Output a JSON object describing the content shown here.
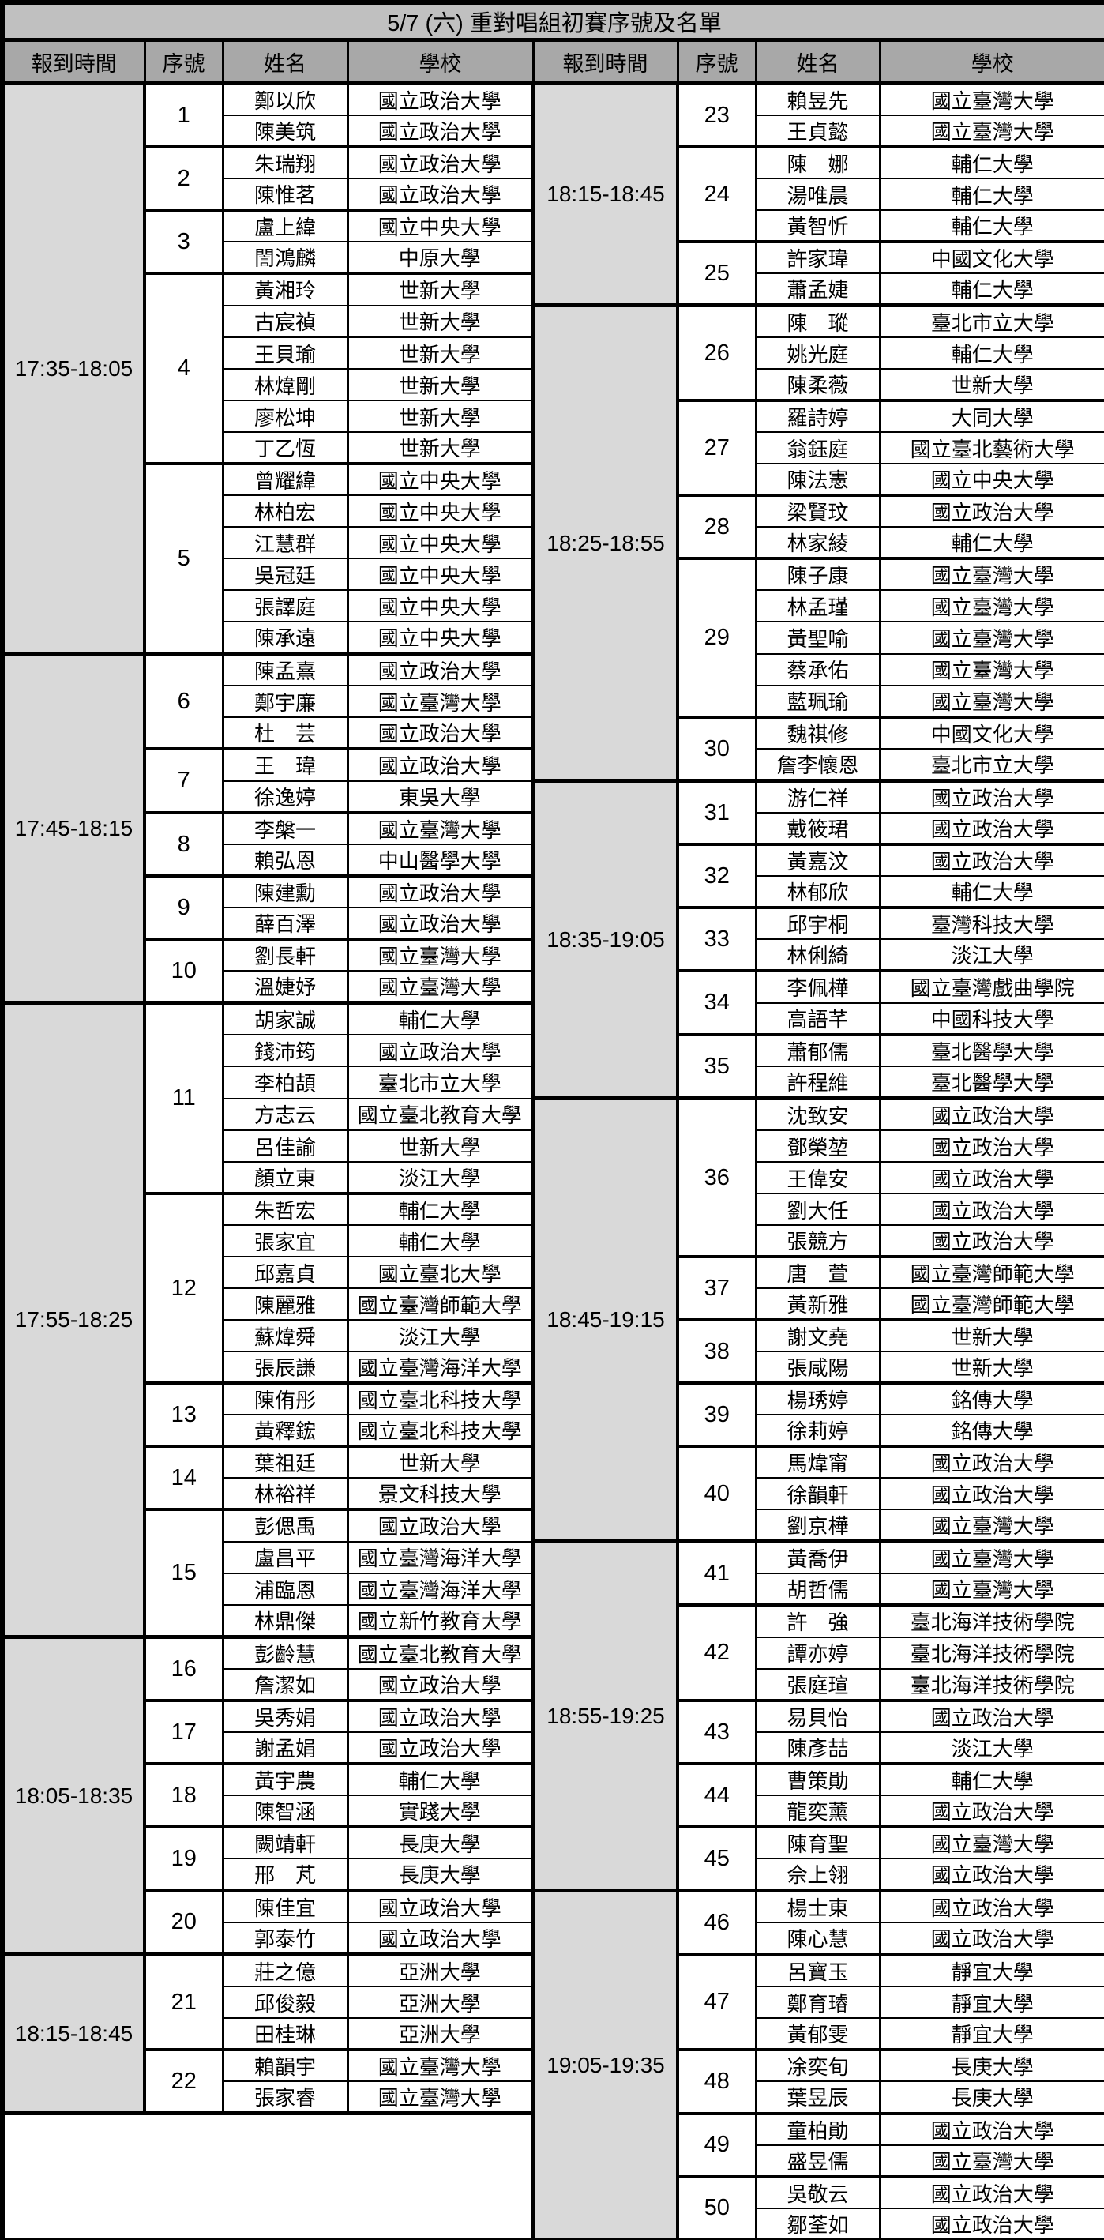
{
  "title": "5/7 (六) 重對唱組初賽序號及名單",
  "headers": [
    "報到時間",
    "序號",
    "姓名",
    "學校",
    "報到時間",
    "序號",
    "姓名",
    "學校"
  ],
  "colors": {
    "title_bg": "#c0c0c0",
    "header_bg": "#a8a8a8",
    "time_bg": "#d9d9d9",
    "border": "#000000"
  },
  "left": {
    "trailing_empty_rows": 4,
    "blocks": [
      {
        "time": "17:35-18:05",
        "groups": [
          {
            "no": "1",
            "members": [
              [
                "鄭以欣",
                "國立政治大學"
              ],
              [
                "陳美筑",
                "國立政治大學"
              ]
            ]
          },
          {
            "no": "2",
            "members": [
              [
                "朱瑞翔",
                "國立政治大學"
              ],
              [
                "陳惟茗",
                "國立政治大學"
              ]
            ]
          },
          {
            "no": "3",
            "members": [
              [
                "盧上緯",
                "國立中央大學"
              ],
              [
                "誾鴻麟",
                "中原大學"
              ]
            ]
          },
          {
            "no": "4",
            "members": [
              [
                "黃湘玲",
                "世新大學"
              ],
              [
                "古宸禎",
                "世新大學"
              ],
              [
                "王貝瑜",
                "世新大學"
              ],
              [
                "林煒剛",
                "世新大學"
              ],
              [
                "廖松坤",
                "世新大學"
              ],
              [
                "丁乙恆",
                "世新大學"
              ]
            ]
          },
          {
            "no": "5",
            "members": [
              [
                "曾耀緯",
                "國立中央大學"
              ],
              [
                "林柏宏",
                "國立中央大學"
              ],
              [
                "江慧群",
                "國立中央大學"
              ],
              [
                "吳冠廷",
                "國立中央大學"
              ],
              [
                "張譯庭",
                "國立中央大學"
              ],
              [
                "陳承遠",
                "國立中央大學"
              ]
            ]
          }
        ]
      },
      {
        "time": "17:45-18:15",
        "groups": [
          {
            "no": "6",
            "members": [
              [
                "陳孟熹",
                "國立政治大學"
              ],
              [
                "鄭宇廉",
                "國立臺灣大學"
              ],
              [
                "杜　芸",
                "國立政治大學"
              ]
            ]
          },
          {
            "no": "7",
            "members": [
              [
                "王　瑋",
                "國立政治大學"
              ],
              [
                "徐逸婷",
                "東吳大學"
              ]
            ]
          },
          {
            "no": "8",
            "members": [
              [
                "李槃一",
                "國立臺灣大學"
              ],
              [
                "賴弘恩",
                "中山醫學大學"
              ]
            ]
          },
          {
            "no": "9",
            "members": [
              [
                "陳建勳",
                "國立政治大學"
              ],
              [
                "薛百澤",
                "國立政治大學"
              ]
            ]
          },
          {
            "no": "10",
            "members": [
              [
                "劉長軒",
                "國立臺灣大學"
              ],
              [
                "溫婕妤",
                "國立臺灣大學"
              ]
            ]
          }
        ]
      },
      {
        "time": "17:55-18:25",
        "groups": [
          {
            "no": "11",
            "members": [
              [
                "胡家誠",
                "輔仁大學"
              ],
              [
                "錢沛筠",
                "國立政治大學"
              ],
              [
                "李柏頡",
                "臺北市立大學"
              ],
              [
                "方志云",
                "國立臺北教育大學"
              ],
              [
                "呂佳諭",
                "世新大學"
              ],
              [
                "顏立東",
                "淡江大學"
              ]
            ]
          },
          {
            "no": "12",
            "members": [
              [
                "朱哲宏",
                "輔仁大學"
              ],
              [
                "張家宜",
                "輔仁大學"
              ],
              [
                "邱嘉貞",
                "國立臺北大學"
              ],
              [
                "陳麗雅",
                "國立臺灣師範大學"
              ],
              [
                "蘇煒舜",
                "淡江大學"
              ],
              [
                "張辰謙",
                "國立臺灣海洋大學"
              ]
            ]
          },
          {
            "no": "13",
            "members": [
              [
                "陳侑彤",
                "國立臺北科技大學"
              ],
              [
                "黃釋鋐",
                "國立臺北科技大學"
              ]
            ]
          },
          {
            "no": "14",
            "members": [
              [
                "葉祖廷",
                "世新大學"
              ],
              [
                "林裕祥",
                "景文科技大學"
              ]
            ]
          },
          {
            "no": "15",
            "members": [
              [
                "彭偲禹",
                "國立政治大學"
              ],
              [
                "盧昌平",
                "國立臺灣海洋大學"
              ],
              [
                "浦臨恩",
                "國立臺灣海洋大學"
              ],
              [
                "林鼎傑",
                "國立新竹教育大學"
              ]
            ]
          }
        ]
      },
      {
        "time": "18:05-18:35",
        "groups": [
          {
            "no": "16",
            "members": [
              [
                "彭齡慧",
                "國立臺北教育大學"
              ],
              [
                "詹潔如",
                "國立政治大學"
              ]
            ]
          },
          {
            "no": "17",
            "members": [
              [
                "吳秀娟",
                "國立政治大學"
              ],
              [
                "謝孟娟",
                "國立政治大學"
              ]
            ]
          },
          {
            "no": "18",
            "members": [
              [
                "黃宇農",
                "輔仁大學"
              ],
              [
                "陳智涵",
                "實踐大學"
              ]
            ]
          },
          {
            "no": "19",
            "members": [
              [
                "闕靖軒",
                "長庚大學"
              ],
              [
                "邢　芃",
                "長庚大學"
              ]
            ]
          },
          {
            "no": "20",
            "members": [
              [
                "陳佳宜",
                "國立政治大學"
              ],
              [
                "郭泰竹",
                "國立政治大學"
              ]
            ]
          }
        ]
      },
      {
        "time": "18:15-18:45",
        "groups": [
          {
            "no": "21",
            "members": [
              [
                "莊之億",
                "亞洲大學"
              ],
              [
                "邱俊毅",
                "亞洲大學"
              ],
              [
                "田桂琳",
                "亞洲大學"
              ]
            ]
          },
          {
            "no": "22",
            "members": [
              [
                "賴韻宇",
                "國立臺灣大學"
              ],
              [
                "張家睿",
                "國立臺灣大學"
              ]
            ]
          }
        ]
      }
    ]
  },
  "right": {
    "trailing_empty_rows": 0,
    "blocks": [
      {
        "time": "18:15-18:45",
        "groups": [
          {
            "no": "23",
            "members": [
              [
                "賴昱先",
                "國立臺灣大學"
              ],
              [
                "王貞懿",
                "國立臺灣大學"
              ]
            ]
          },
          {
            "no": "24",
            "members": [
              [
                "陳　娜",
                "輔仁大學"
              ],
              [
                "湯唯晨",
                "輔仁大學"
              ],
              [
                "黃智忻",
                "輔仁大學"
              ]
            ]
          },
          {
            "no": "25",
            "members": [
              [
                "許家瑋",
                "中國文化大學"
              ],
              [
                "蕭孟婕",
                "輔仁大學"
              ]
            ]
          }
        ]
      },
      {
        "time": "18:25-18:55",
        "groups": [
          {
            "no": "26",
            "members": [
              [
                "陳　瑽",
                "臺北市立大學"
              ],
              [
                "姚光庭",
                "輔仁大學"
              ],
              [
                "陳柔薇",
                "世新大學"
              ]
            ]
          },
          {
            "no": "27",
            "members": [
              [
                "羅詩婷",
                "大同大學"
              ],
              [
                "翁鈺庭",
                "國立臺北藝術大學"
              ],
              [
                "陳法憲",
                "國立中央大學"
              ]
            ]
          },
          {
            "no": "28",
            "members": [
              [
                "梁賢玟",
                "國立政治大學"
              ],
              [
                "林家綾",
                "輔仁大學"
              ]
            ]
          },
          {
            "no": "29",
            "members": [
              [
                "陳子康",
                "國立臺灣大學"
              ],
              [
                "林孟瑾",
                "國立臺灣大學"
              ],
              [
                "黃聖喻",
                "國立臺灣大學"
              ],
              [
                "蔡承佑",
                "國立臺灣大學"
              ],
              [
                "藍珮瑜",
                "國立臺灣大學"
              ]
            ]
          },
          {
            "no": "30",
            "members": [
              [
                "魏祺修",
                "中國文化大學"
              ],
              [
                "詹李懷恩",
                "臺北市立大學"
              ]
            ]
          }
        ]
      },
      {
        "time": "18:35-19:05",
        "groups": [
          {
            "no": "31",
            "members": [
              [
                "游仁祥",
                "國立政治大學"
              ],
              [
                "戴筱珺",
                "國立政治大學"
              ]
            ]
          },
          {
            "no": "32",
            "members": [
              [
                "黃嘉汶",
                "國立政治大學"
              ],
              [
                "林郁欣",
                "輔仁大學"
              ]
            ]
          },
          {
            "no": "33",
            "members": [
              [
                "邱宇桐",
                "臺灣科技大學"
              ],
              [
                "林俐綺",
                "淡江大學"
              ]
            ]
          },
          {
            "no": "34",
            "members": [
              [
                "李佩樺",
                "國立臺灣戲曲學院"
              ],
              [
                "高語芊",
                "中國科技大學"
              ]
            ]
          },
          {
            "no": "35",
            "members": [
              [
                "蕭郁儒",
                "臺北醫學大學"
              ],
              [
                "許程維",
                "臺北醫學大學"
              ]
            ]
          }
        ]
      },
      {
        "time": "18:45-19:15",
        "groups": [
          {
            "no": "36",
            "members": [
              [
                "沈致安",
                "國立政治大學"
              ],
              [
                "鄧榮堃",
                "國立政治大學"
              ],
              [
                "王偉安",
                "國立政治大學"
              ],
              [
                "劉大任",
                "國立政治大學"
              ],
              [
                "張競方",
                "國立政治大學"
              ]
            ]
          },
          {
            "no": "37",
            "members": [
              [
                "唐　萱",
                "國立臺灣師範大學"
              ],
              [
                "黃新雅",
                "國立臺灣師範大學"
              ]
            ]
          },
          {
            "no": "38",
            "members": [
              [
                "謝文堯",
                "世新大學"
              ],
              [
                "張咸陽",
                "世新大學"
              ]
            ]
          },
          {
            "no": "39",
            "members": [
              [
                "楊琇婷",
                "銘傳大學"
              ],
              [
                "徐莉婷",
                "銘傳大學"
              ]
            ]
          },
          {
            "no": "40",
            "members": [
              [
                "馬煒甯",
                "國立政治大學"
              ],
              [
                "徐韻軒",
                "國立政治大學"
              ],
              [
                "劉京樺",
                "國立臺灣大學"
              ]
            ]
          }
        ]
      },
      {
        "time": "18:55-19:25",
        "groups": [
          {
            "no": "41",
            "members": [
              [
                "黃喬伊",
                "國立臺灣大學"
              ],
              [
                "胡哲儒",
                "國立臺灣大學"
              ]
            ]
          },
          {
            "no": "42",
            "members": [
              [
                "許　強",
                "臺北海洋技術學院"
              ],
              [
                "譚亦婷",
                "臺北海洋技術學院"
              ],
              [
                "張庭瑄",
                "臺北海洋技術學院"
              ]
            ]
          },
          {
            "no": "43",
            "members": [
              [
                "易貝怡",
                "國立政治大學"
              ],
              [
                "陳彥喆",
                "淡江大學"
              ]
            ]
          },
          {
            "no": "44",
            "members": [
              [
                "曹策勛",
                "輔仁大學"
              ],
              [
                "龍奕薰",
                "國立政治大學"
              ]
            ]
          },
          {
            "no": "45",
            "members": [
              [
                "陳育聖",
                "國立臺灣大學"
              ],
              [
                "佘上翎",
                "國立政治大學"
              ]
            ]
          }
        ]
      },
      {
        "time": "19:05-19:35",
        "groups": [
          {
            "no": "46",
            "members": [
              [
                "楊士東",
                "國立政治大學"
              ],
              [
                "陳心慧",
                "國立政治大學"
              ]
            ]
          },
          {
            "no": "47",
            "members": [
              [
                "呂寶玉",
                "靜宜大學"
              ],
              [
                "鄭育璿",
                "靜宜大學"
              ],
              [
                "黃郁雯",
                "靜宜大學"
              ]
            ]
          },
          {
            "no": "48",
            "members": [
              [
                "凃奕旬",
                "長庚大學"
              ],
              [
                "葉昱辰",
                "長庚大學"
              ]
            ]
          },
          {
            "no": "49",
            "members": [
              [
                "童柏勛",
                "國立政治大學"
              ],
              [
                "盛昱儒",
                "國立臺灣大學"
              ]
            ]
          },
          {
            "no": "50",
            "members": [
              [
                "吳敬云",
                "國立政治大學"
              ],
              [
                "鄒荃如",
                "國立政治大學"
              ]
            ]
          }
        ]
      }
    ]
  }
}
